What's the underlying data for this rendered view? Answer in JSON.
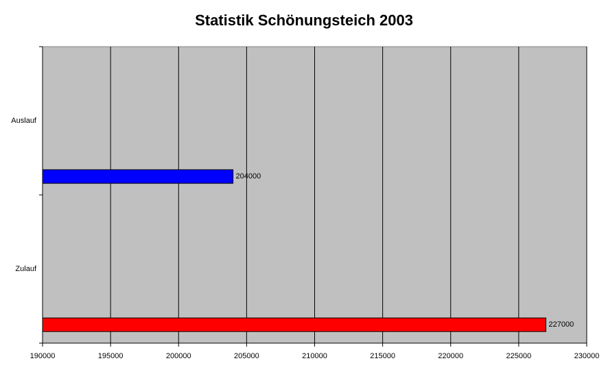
{
  "chart_data": {
    "type": "bar",
    "orientation": "horizontal",
    "title": "Statistik Schönungsteich 2003",
    "categories": [
      "Auslauf",
      "Zulauf"
    ],
    "values": [
      204000,
      227000
    ],
    "colors": [
      "#0000ff",
      "#ff0000"
    ],
    "xlim": [
      190000,
      230000
    ],
    "xticks": [
      190000,
      195000,
      200000,
      205000,
      210000,
      215000,
      220000,
      225000,
      230000
    ],
    "grid": true
  }
}
